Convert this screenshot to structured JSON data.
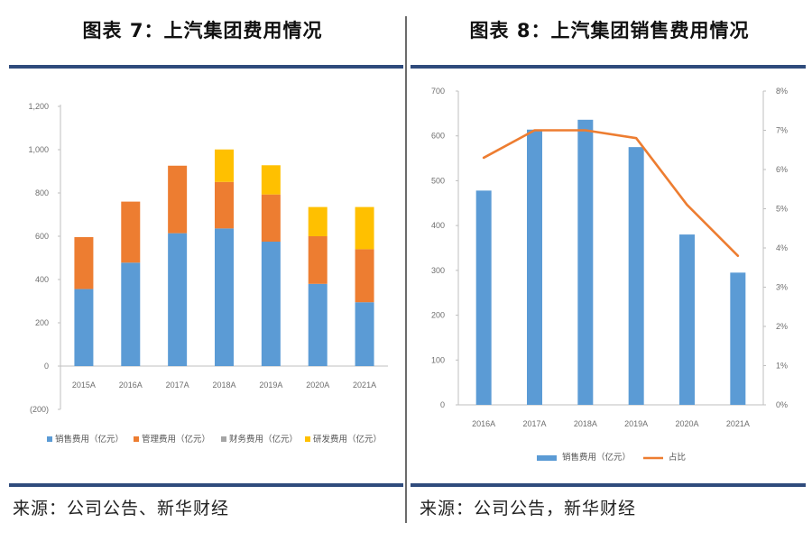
{
  "left": {
    "title": "图表 7：上汽集团费用情况",
    "source": "来源：公司公告、新华财经",
    "chart_data": {
      "type": "bar",
      "stacked": true,
      "categories": [
        "2015A",
        "2016A",
        "2017A",
        "2018A",
        "2019A",
        "2020A",
        "2021A"
      ],
      "series": [
        {
          "name": "销售费用（亿元）",
          "color": "#5b9bd5",
          "values": [
            356,
            478,
            614,
            636,
            575,
            380,
            295
          ]
        },
        {
          "name": "管理费用（亿元）",
          "color": "#ed7d31",
          "values": [
            240,
            282,
            312,
            215,
            218,
            220,
            245
          ]
        },
        {
          "name": "财务费用（亿元）",
          "color": "#a5a5a5",
          "values": [
            0,
            0,
            0,
            0,
            0,
            0,
            0
          ]
        },
        {
          "name": "研发费用（亿元）",
          "color": "#ffc000",
          "values": [
            0,
            0,
            0,
            150,
            135,
            135,
            195
          ]
        }
      ],
      "y_ticks": [
        "1,200",
        "1,000",
        "800",
        "600",
        "400",
        "200",
        "0",
        "(200)"
      ],
      "ylim": [
        -200,
        1200
      ],
      "title": "",
      "xlabel": "",
      "ylabel": ""
    }
  },
  "right": {
    "title": "图表 8：上汽集团销售费用情况",
    "source": "来源：公司公告，新华财经",
    "chart_data": {
      "type": "bar+line",
      "categories": [
        "2016A",
        "2017A",
        "2018A",
        "2019A",
        "2020A",
        "2021A"
      ],
      "series": [
        {
          "name": "销售费用（亿元）",
          "type": "bar",
          "axis": "left",
          "color": "#5b9bd5",
          "values": [
            478,
            614,
            636,
            575,
            380,
            295
          ]
        },
        {
          "name": "占比",
          "type": "line",
          "axis": "right",
          "color": "#ed7d31",
          "values": [
            6.3,
            7.0,
            7.0,
            6.8,
            5.1,
            3.8
          ]
        }
      ],
      "y_left_ticks": [
        "700",
        "600",
        "500",
        "400",
        "300",
        "200",
        "100",
        "0"
      ],
      "y_right_ticks": [
        "8%",
        "7%",
        "6%",
        "5%",
        "4%",
        "3%",
        "2%",
        "1%",
        "0%"
      ],
      "ylim_left": [
        0,
        700
      ],
      "ylim_right": [
        0,
        8
      ],
      "title": "",
      "xlabel": "",
      "ylabel": ""
    }
  }
}
